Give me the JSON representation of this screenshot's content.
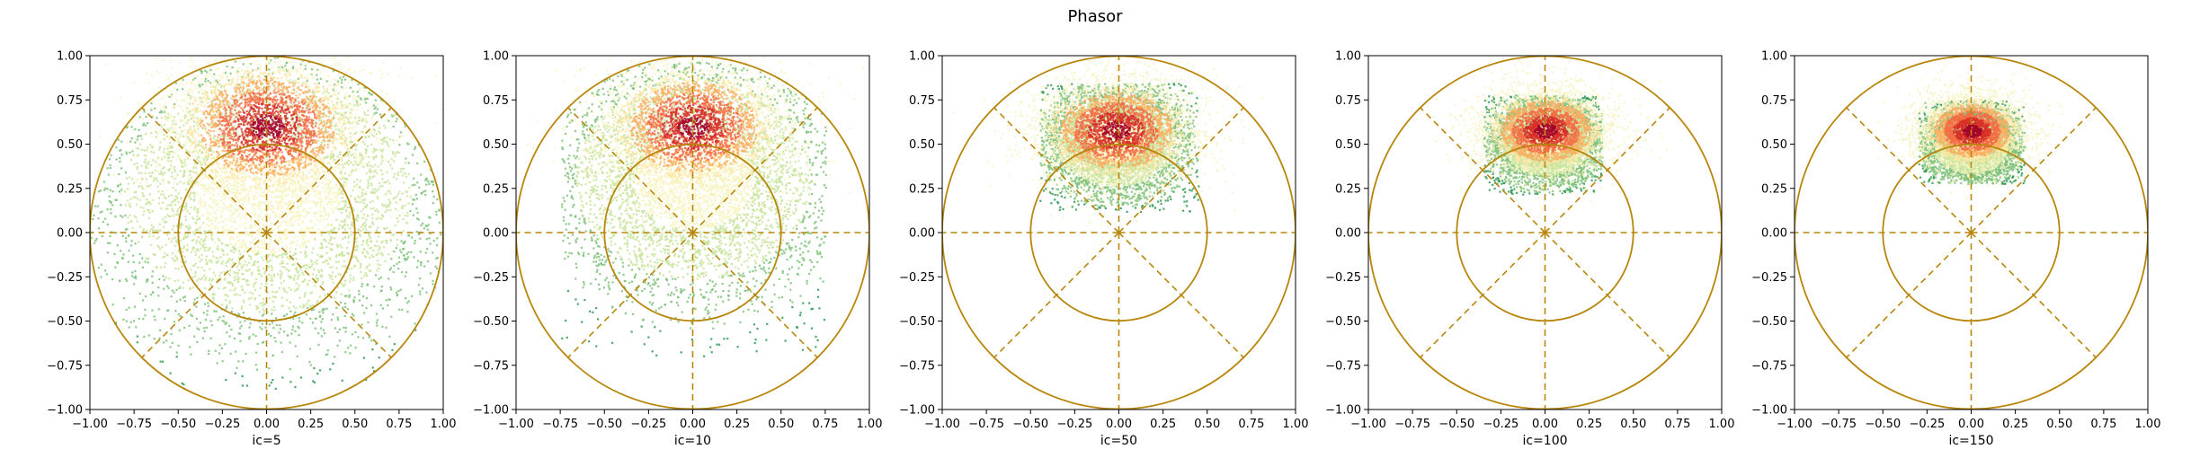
{
  "figure": {
    "suptitle": "Phasor"
  },
  "colors": {
    "guide": "#b8860b",
    "colormap": [
      "#f7f4c0",
      "#c9e49c",
      "#7fc27a",
      "#2e9a52",
      "#006d2c"
    ],
    "hot": [
      "#fde7a6",
      "#fdae61",
      "#f46d43",
      "#d73027",
      "#a50026"
    ]
  },
  "chart_data": [
    {
      "type": "heatmap",
      "title": "",
      "xlabel": "ic=5",
      "ylabel": "",
      "xlim": [
        -1.0,
        1.0
      ],
      "ylim": [
        -1.0,
        1.0
      ],
      "xticks": [
        "−1.00",
        "−0.75",
        "−0.50",
        "−0.25",
        "0.00",
        "0.25",
        "0.50",
        "0.75",
        "1.00"
      ],
      "yticks": [
        "−1.00",
        "−0.75",
        "−0.50",
        "−0.25",
        "0.00",
        "0.25",
        "0.50",
        "0.75",
        "1.00"
      ],
      "guides": {
        "unit_circle_radius": 1.0,
        "inner_circle_radius": 0.5,
        "spoke_angles_deg": [
          0,
          45,
          90,
          135,
          180,
          225,
          270,
          315
        ]
      },
      "density": {
        "peak_x": 0.0,
        "peak_y": 0.6,
        "core_spread_x": 0.18,
        "core_spread_y": 0.13,
        "halo_center_y": 0.22,
        "halo_spread_x": 0.55,
        "halo_spread_y": 0.45,
        "extent_x": [
          -1.0,
          1.0
        ],
        "extent_y": [
          -0.88,
          1.0
        ]
      }
    },
    {
      "type": "heatmap",
      "title": "",
      "xlabel": "ic=10",
      "ylabel": "",
      "xlim": [
        -1.0,
        1.0
      ],
      "ylim": [
        -1.0,
        1.0
      ],
      "xticks": [
        "−1.00",
        "−0.75",
        "−0.50",
        "−0.25",
        "0.00",
        "0.25",
        "0.50",
        "0.75",
        "1.00"
      ],
      "yticks": [
        "−1.00",
        "−0.75",
        "−0.50",
        "−0.25",
        "0.00",
        "0.25",
        "0.50",
        "0.75",
        "1.00"
      ],
      "guides": {
        "unit_circle_radius": 1.0,
        "inner_circle_radius": 0.5,
        "spoke_angles_deg": [
          0,
          45,
          90,
          135,
          180,
          225,
          270,
          315
        ]
      },
      "density": {
        "peak_x": 0.0,
        "peak_y": 0.6,
        "core_spread_x": 0.17,
        "core_spread_y": 0.12,
        "halo_center_y": 0.3,
        "halo_spread_x": 0.45,
        "halo_spread_y": 0.38,
        "extent_x": [
          -0.75,
          0.75
        ],
        "extent_y": [
          -0.7,
          0.98
        ]
      }
    },
    {
      "type": "heatmap",
      "title": "",
      "xlabel": "ic=50",
      "ylabel": "",
      "xlim": [
        -1.0,
        1.0
      ],
      "ylim": [
        -1.0,
        1.0
      ],
      "xticks": [
        "−1.00",
        "−0.75",
        "−0.50",
        "−0.25",
        "0.00",
        "0.25",
        "0.50",
        "0.75",
        "1.00"
      ],
      "yticks": [
        "−1.00",
        "−0.75",
        "−0.50",
        "−0.25",
        "0.00",
        "0.25",
        "0.50",
        "0.75",
        "1.00"
      ],
      "guides": {
        "unit_circle_radius": 1.0,
        "inner_circle_radius": 0.5,
        "spoke_angles_deg": [
          0,
          45,
          90,
          135,
          180,
          225,
          270,
          315
        ]
      },
      "density": {
        "peak_x": -0.02,
        "peak_y": 0.58,
        "core_spread_x": 0.15,
        "core_spread_y": 0.1,
        "halo_center_y": 0.52,
        "halo_spread_x": 0.22,
        "halo_spread_y": 0.17,
        "extent_x": [
          -0.45,
          0.45
        ],
        "extent_y": [
          0.12,
          0.85
        ]
      }
    },
    {
      "type": "heatmap",
      "title": "",
      "xlabel": "ic=100",
      "ylabel": "",
      "xlim": [
        -1.0,
        1.0
      ],
      "ylim": [
        -1.0,
        1.0
      ],
      "xticks": [
        "−1.00",
        "−0.75",
        "−0.50",
        "−0.25",
        "0.00",
        "0.25",
        "0.50",
        "0.75",
        "1.00"
      ],
      "yticks": [
        "−1.00",
        "−0.75",
        "−0.50",
        "−0.25",
        "0.00",
        "0.25",
        "0.50",
        "0.75",
        "1.00"
      ],
      "guides": {
        "unit_circle_radius": 1.0,
        "inner_circle_radius": 0.5,
        "spoke_angles_deg": [
          0,
          45,
          90,
          135,
          180,
          225,
          270,
          315
        ]
      },
      "density": {
        "peak_x": 0.0,
        "peak_y": 0.58,
        "core_spread_x": 0.12,
        "core_spread_y": 0.08,
        "halo_center_y": 0.52,
        "halo_spread_x": 0.17,
        "halo_spread_y": 0.13,
        "extent_x": [
          -0.35,
          0.32
        ],
        "extent_y": [
          0.22,
          0.78
        ]
      }
    },
    {
      "type": "heatmap",
      "title": "",
      "xlabel": "ic=150",
      "ylabel": "",
      "xlim": [
        -1.0,
        1.0
      ],
      "ylim": [
        -1.0,
        1.0
      ],
      "xticks": [
        "−1.00",
        "−0.75",
        "−0.50",
        "−0.25",
        "0.00",
        "0.25",
        "0.50",
        "0.75",
        "1.00"
      ],
      "yticks": [
        "−1.00",
        "−0.75",
        "−0.50",
        "−0.25",
        "0.00",
        "0.25",
        "0.50",
        "0.75",
        "1.00"
      ],
      "guides": {
        "unit_circle_radius": 1.0,
        "inner_circle_radius": 0.5,
        "spoke_angles_deg": [
          0,
          45,
          90,
          135,
          180,
          225,
          270,
          315
        ]
      },
      "density": {
        "peak_x": 0.0,
        "peak_y": 0.58,
        "core_spread_x": 0.1,
        "core_spread_y": 0.07,
        "halo_center_y": 0.5,
        "halo_spread_x": 0.14,
        "halo_spread_y": 0.11,
        "extent_x": [
          -0.3,
          0.3
        ],
        "extent_y": [
          0.28,
          0.75
        ]
      }
    }
  ]
}
